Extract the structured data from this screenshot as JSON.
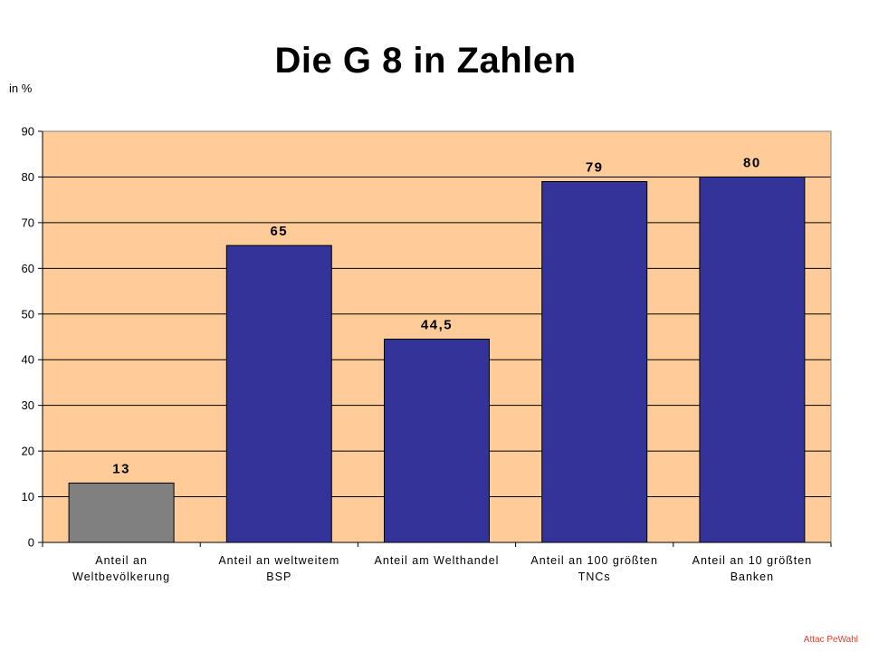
{
  "chart_data": {
    "type": "bar",
    "title": "Die G 8 in Zahlen",
    "ylabel": "in %",
    "xlabel": "",
    "ylim": [
      0,
      90
    ],
    "yticks": [
      0,
      10,
      20,
      30,
      40,
      50,
      60,
      70,
      80,
      90
    ],
    "grid": true,
    "categories": [
      [
        "Anteil an",
        "Weltbevölkerung"
      ],
      [
        "Anteil an weltweitem",
        "BSP"
      ],
      [
        "Anteil am Welthandel"
      ],
      [
        "Anteil an 100 größten",
        "TNCs"
      ],
      [
        "Anteil an 10 größten",
        "Banken"
      ]
    ],
    "values": [
      13,
      65,
      44.5,
      79,
      80
    ],
    "data_labels": [
      "13",
      "65",
      "44,5",
      "79",
      "80"
    ],
    "bar_colors": [
      "#808080",
      "#333399",
      "#333399",
      "#333399",
      "#333399"
    ],
    "plot_background": "#ffcc99"
  },
  "footer": {
    "credit": "Attac PeWahl"
  }
}
